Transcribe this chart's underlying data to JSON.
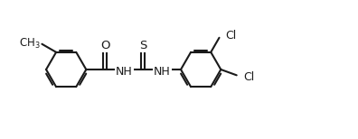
{
  "background_color": "#ffffff",
  "line_color": "#1a1a1a",
  "line_width": 1.5,
  "dbo": 0.06,
  "r": 0.55,
  "figsize": [
    3.96,
    1.54
  ],
  "dpi": 100,
  "xlim": [
    0.0,
    9.8
  ],
  "ylim": [
    0.5,
    3.5
  ]
}
